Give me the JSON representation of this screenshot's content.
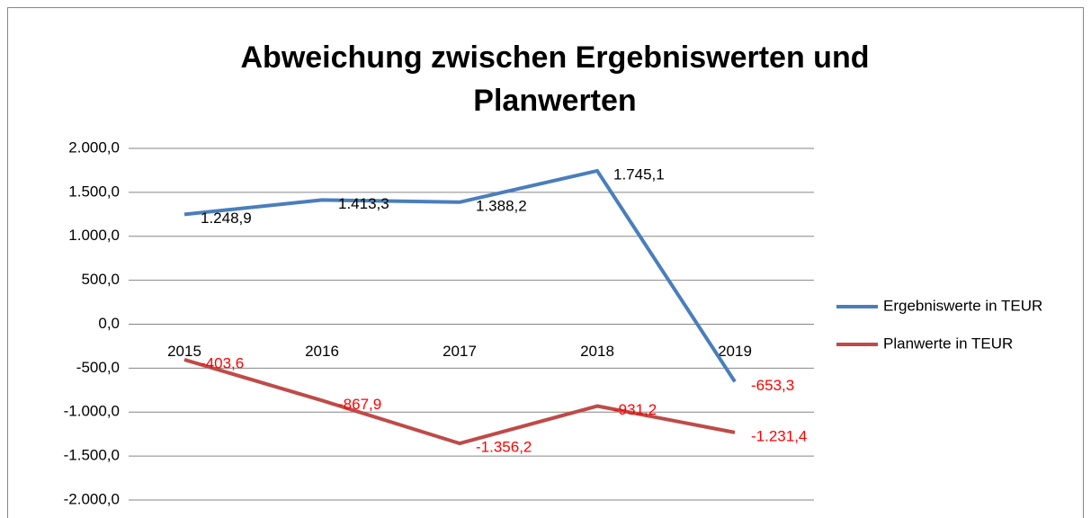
{
  "chart_data": {
    "type": "line",
    "title": [
      "Abweichung zwischen Ergebniswerten und",
      "Planwerten"
    ],
    "categories": [
      "2015",
      "2016",
      "2017",
      "2018",
      "2019"
    ],
    "series": [
      {
        "name": "Ergebniswerte in TEUR",
        "color": "#4a7ebb",
        "values": [
          1248.9,
          1413.3,
          1388.2,
          1745.1,
          -653.3
        ],
        "value_labels": [
          "1.248,9",
          "1.413,3",
          "1.388,2",
          "1.745,1",
          "-653,3"
        ]
      },
      {
        "name": "Planwerte in TEUR",
        "color": "#be4b48",
        "values": [
          -403.6,
          -867.9,
          -1356.2,
          -931.2,
          -1231.4
        ],
        "value_labels": [
          "-403,6",
          "-867,9",
          "-1.356,2",
          "-931,2",
          "-1.231,4"
        ]
      }
    ],
    "ylim": [
      -2000,
      2000
    ],
    "yticks": [
      {
        "value": -2000,
        "label": "-2.000,0"
      },
      {
        "value": -1500,
        "label": "-1.500,0"
      },
      {
        "value": -1000,
        "label": "-1.000,0"
      },
      {
        "value": -500,
        "label": "-500,0"
      },
      {
        "value": 0,
        "label": "0,0"
      },
      {
        "value": 500,
        "label": "500,0"
      },
      {
        "value": 1000,
        "label": "1.000,0"
      },
      {
        "value": 1500,
        "label": "1.500,0"
      },
      {
        "value": 2000,
        "label": "2.000,0"
      }
    ],
    "grid": true,
    "legend": "right",
    "negative_label_color": "#ff0000"
  }
}
